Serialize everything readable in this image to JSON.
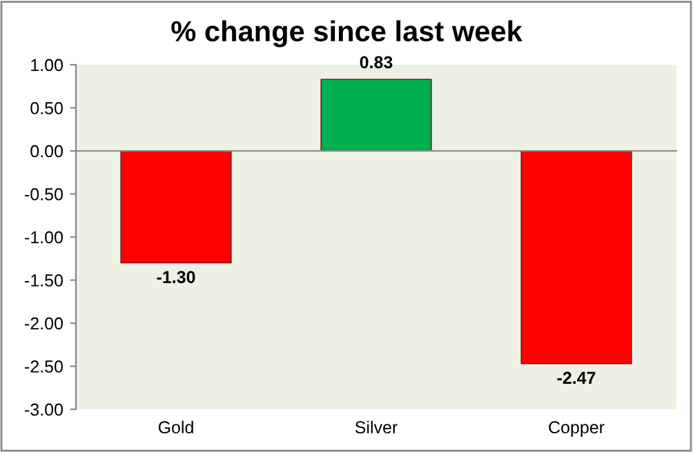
{
  "chart_data": {
    "type": "bar",
    "title": "% change since last week",
    "categories": [
      "Gold",
      "Silver",
      "Copper"
    ],
    "values": [
      -1.3,
      0.83,
      -2.47
    ],
    "colors": [
      "#ff0000",
      "#00b050",
      "#ff0000"
    ],
    "value_labels": [
      "-1.30",
      "0.83",
      "-2.47"
    ],
    "ylim": [
      -3,
      1
    ],
    "yticks": [
      {
        "value": 1,
        "label": "1.00"
      },
      {
        "value": 0.5,
        "label": "0.50"
      },
      {
        "value": 0,
        "label": "0.00"
      },
      {
        "value": -0.5,
        "label": "-0.50"
      },
      {
        "value": -1,
        "label": "-1.00"
      },
      {
        "value": -1.5,
        "label": "-1.50"
      },
      {
        "value": -2,
        "label": "-2.00"
      },
      {
        "value": -2.5,
        "label": "-2.50"
      },
      {
        "value": -3,
        "label": "-3.00"
      }
    ],
    "legend": false
  }
}
